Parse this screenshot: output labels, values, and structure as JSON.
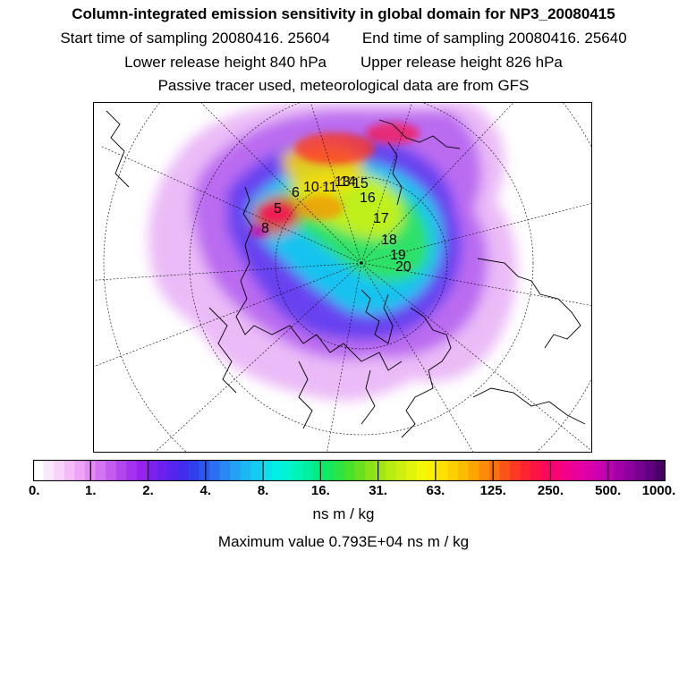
{
  "title": "Column-integrated emission sensitivity in global domain for NP3_20080415",
  "sampling": {
    "start": "Start time of sampling 20080416. 25604",
    "end": "End time of sampling 20080416. 25640"
  },
  "release": {
    "lower": "Lower release height  840 hPa",
    "upper": "Upper release height  826 hPa"
  },
  "tracer_note": "Passive tracer used, meteorological data are from GFS",
  "map": {
    "trajectory_labels": [
      "5",
      "6",
      "8",
      "10",
      "11",
      "13",
      "14",
      "15",
      "16",
      "17",
      "18",
      "19",
      "20"
    ]
  },
  "colorbar": {
    "tick_labels": [
      "0.",
      "1.",
      "2.",
      "4.",
      "8.",
      "16.",
      "31.",
      "63.",
      "125.",
      "250.",
      "500.",
      "1000."
    ],
    "colors": [
      "#ffffff",
      "#fce8fc",
      "#f8d2f8",
      "#f4bcf6",
      "#eea4f4",
      "#e28cf2",
      "#d474f2",
      "#c45cf0",
      "#b446ee",
      "#a432ee",
      "#9624ec",
      "#7e20ee",
      "#6a20ee",
      "#5624ee",
      "#422cee",
      "#3040ee",
      "#2a58f0",
      "#2a70f2",
      "#2888f4",
      "#24a0f4",
      "#1cb8f4",
      "#14ccf2",
      "#0ae0ee",
      "#00f0e4",
      "#00f4d0",
      "#00f4b8",
      "#00f0a0",
      "#04ec80",
      "#14e860",
      "#2ce444",
      "#48e02c",
      "#68e020",
      "#88e418",
      "#a0e814",
      "#b8ec12",
      "#ccf010",
      "#e0f40c",
      "#f4f808",
      "#fcf000",
      "#fce000",
      "#fcd000",
      "#fcbc00",
      "#fca400",
      "#fc8c08",
      "#fc7010",
      "#fc5418",
      "#fc3a24",
      "#fc2430",
      "#fc1446",
      "#fc085c",
      "#f80474",
      "#f2008c",
      "#e8009c",
      "#dc00a8",
      "#cc00b0",
      "#ba00b0",
      "#a400a8",
      "#8e00a0",
      "#780090",
      "#600080",
      "#480066"
    ]
  },
  "unit": "ns m / kg",
  "max_value_text": "Maximum value  0.793E+04 ns m / kg"
}
